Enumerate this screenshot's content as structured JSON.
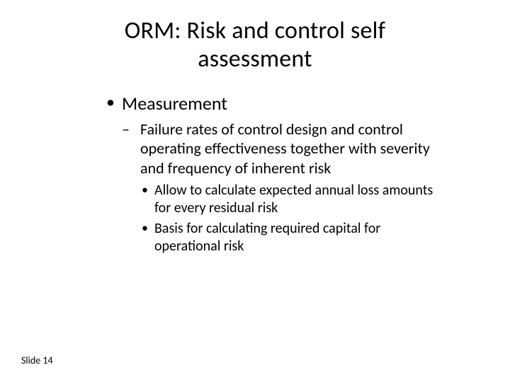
{
  "slide": {
    "title": "ORM: Risk and control self assessment",
    "title_fontsize": 34,
    "background_color": "#ffffff",
    "text_color": "#000000",
    "font_family": "Calibri",
    "body": {
      "lvl1": {
        "bullet_char": "•",
        "fontsize": 26,
        "items": [
          {
            "text": "Measurement",
            "children": {
              "bullet_char": "–",
              "fontsize": 22,
              "items": [
                {
                  "text": "Failure rates of control design and control operating effectiveness together with severity and frequency of inherent risk",
                  "children": {
                    "bullet_char": "•",
                    "fontsize": 20,
                    "items": [
                      {
                        "text": "Allow to calculate expected annual loss amounts for every residual risk"
                      },
                      {
                        "text": "Basis for calculating required capital for operational risk"
                      }
                    ]
                  }
                }
              ]
            }
          }
        ]
      }
    },
    "footer": "Slide 14",
    "footer_fontsize": 14
  }
}
